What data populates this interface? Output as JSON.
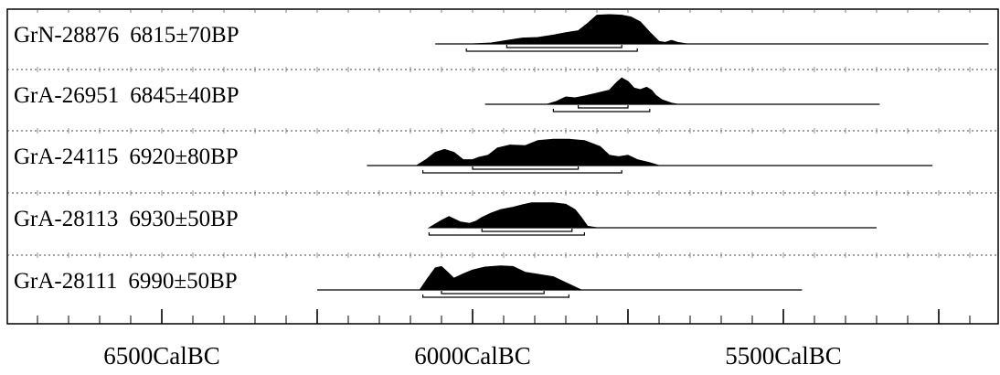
{
  "chart_data": {
    "type": "area",
    "title": "",
    "xlabel": "",
    "ylabel": "",
    "x_unit": "CalBC",
    "xlim": [
      6750,
      5200
    ],
    "tick_labels": [
      "6500CalBC",
      "6000CalBC",
      "5500CalBC"
    ],
    "tick_values": [
      6500,
      6000,
      5500
    ],
    "minor_tick_step": 50,
    "grid": "dotted horizontal separators between samples",
    "series": [
      {
        "name": "GrN-28876",
        "date_label": "6815±70BP",
        "range_line": [
          6060,
          5170
        ],
        "ranges_1sigma": [
          [
            5945,
            5760
          ]
        ],
        "ranges_2sigma": [
          [
            6010,
            5735
          ]
        ],
        "distribution": [
          [
            6000,
            0
          ],
          [
            5970,
            0.03
          ],
          [
            5945,
            0.12
          ],
          [
            5920,
            0.2
          ],
          [
            5895,
            0.22
          ],
          [
            5870,
            0.3
          ],
          [
            5850,
            0.38
          ],
          [
            5830,
            0.45
          ],
          [
            5815,
            0.7
          ],
          [
            5800,
            0.98
          ],
          [
            5780,
            1.0
          ],
          [
            5760,
            0.98
          ],
          [
            5745,
            0.92
          ],
          [
            5730,
            0.75
          ],
          [
            5715,
            0.4
          ],
          [
            5700,
            0.08
          ],
          [
            5690,
            0.05
          ],
          [
            5680,
            0.12
          ],
          [
            5670,
            0.05
          ],
          [
            5655,
            0
          ]
        ]
      },
      {
        "name": "GrA-26951",
        "date_label": "6845±40BP",
        "range_line": [
          5980,
          5345
        ],
        "ranges_1sigma": [
          [
            5830,
            5750
          ]
        ],
        "ranges_2sigma": [
          [
            5870,
            5715
          ]
        ],
        "distribution": [
          [
            5880,
            0
          ],
          [
            5865,
            0.1
          ],
          [
            5850,
            0.25
          ],
          [
            5835,
            0.22
          ],
          [
            5820,
            0.28
          ],
          [
            5800,
            0.38
          ],
          [
            5780,
            0.48
          ],
          [
            5768,
            0.75
          ],
          [
            5760,
            0.9
          ],
          [
            5750,
            0.78
          ],
          [
            5740,
            0.55
          ],
          [
            5730,
            0.5
          ],
          [
            5720,
            0.58
          ],
          [
            5712,
            0.48
          ],
          [
            5705,
            0.3
          ],
          [
            5695,
            0.15
          ],
          [
            5680,
            0.04
          ],
          [
            5670,
            0
          ]
        ]
      },
      {
        "name": "GrA-24115",
        "date_label": "6920±80BP",
        "range_line": [
          6170,
          5260
        ],
        "ranges_1sigma": [
          [
            6000,
            5830
          ]
        ],
        "ranges_2sigma": [
          [
            6080,
            5760
          ]
        ],
        "distribution": [
          [
            6090,
            0
          ],
          [
            6075,
            0.2
          ],
          [
            6060,
            0.45
          ],
          [
            6045,
            0.55
          ],
          [
            6030,
            0.45
          ],
          [
            6015,
            0.2
          ],
          [
            6000,
            0.2
          ],
          [
            5990,
            0.28
          ],
          [
            5975,
            0.35
          ],
          [
            5960,
            0.6
          ],
          [
            5940,
            0.7
          ],
          [
            5915,
            0.68
          ],
          [
            5895,
            0.85
          ],
          [
            5870,
            0.9
          ],
          [
            5845,
            0.9
          ],
          [
            5820,
            0.85
          ],
          [
            5795,
            0.65
          ],
          [
            5780,
            0.35
          ],
          [
            5765,
            0.3
          ],
          [
            5750,
            0.35
          ],
          [
            5735,
            0.2
          ],
          [
            5715,
            0.1
          ],
          [
            5700,
            0
          ]
        ]
      },
      {
        "name": "GrA-28113",
        "date_label": "6930±50BP",
        "range_line": [
          6025,
          5350
        ],
        "ranges_1sigma": [
          [
            5985,
            5840
          ]
        ],
        "ranges_2sigma": [
          [
            6070,
            5820
          ]
        ],
        "distribution": [
          [
            6070,
            0
          ],
          [
            6050,
            0.25
          ],
          [
            6038,
            0.38
          ],
          [
            6020,
            0.2
          ],
          [
            6005,
            0.15
          ],
          [
            5995,
            0.22
          ],
          [
            5985,
            0.35
          ],
          [
            5970,
            0.5
          ],
          [
            5955,
            0.62
          ],
          [
            5935,
            0.7
          ],
          [
            5920,
            0.78
          ],
          [
            5905,
            0.85
          ],
          [
            5885,
            0.85
          ],
          [
            5870,
            0.85
          ],
          [
            5850,
            0.8
          ],
          [
            5835,
            0.62
          ],
          [
            5825,
            0.35
          ],
          [
            5815,
            0.05
          ],
          [
            5800,
            0
          ]
        ]
      },
      {
        "name": "GrA-28111",
        "date_label": "6990±50BP",
        "range_line": [
          6250,
          5470
        ],
        "ranges_1sigma": [
          [
            6050,
            5885
          ]
        ],
        "ranges_2sigma": [
          [
            6080,
            5845
          ]
        ],
        "distribution": [
          [
            6085,
            0
          ],
          [
            6072,
            0.4
          ],
          [
            6060,
            0.75
          ],
          [
            6050,
            0.8
          ],
          [
            6040,
            0.6
          ],
          [
            6030,
            0.4
          ],
          [
            6015,
            0.55
          ],
          [
            6000,
            0.68
          ],
          [
            5980,
            0.78
          ],
          [
            5955,
            0.82
          ],
          [
            5935,
            0.8
          ],
          [
            5915,
            0.6
          ],
          [
            5900,
            0.55
          ],
          [
            5885,
            0.5
          ],
          [
            5870,
            0.45
          ],
          [
            5855,
            0.3
          ],
          [
            5840,
            0.15
          ],
          [
            5825,
            0
          ]
        ]
      }
    ]
  }
}
